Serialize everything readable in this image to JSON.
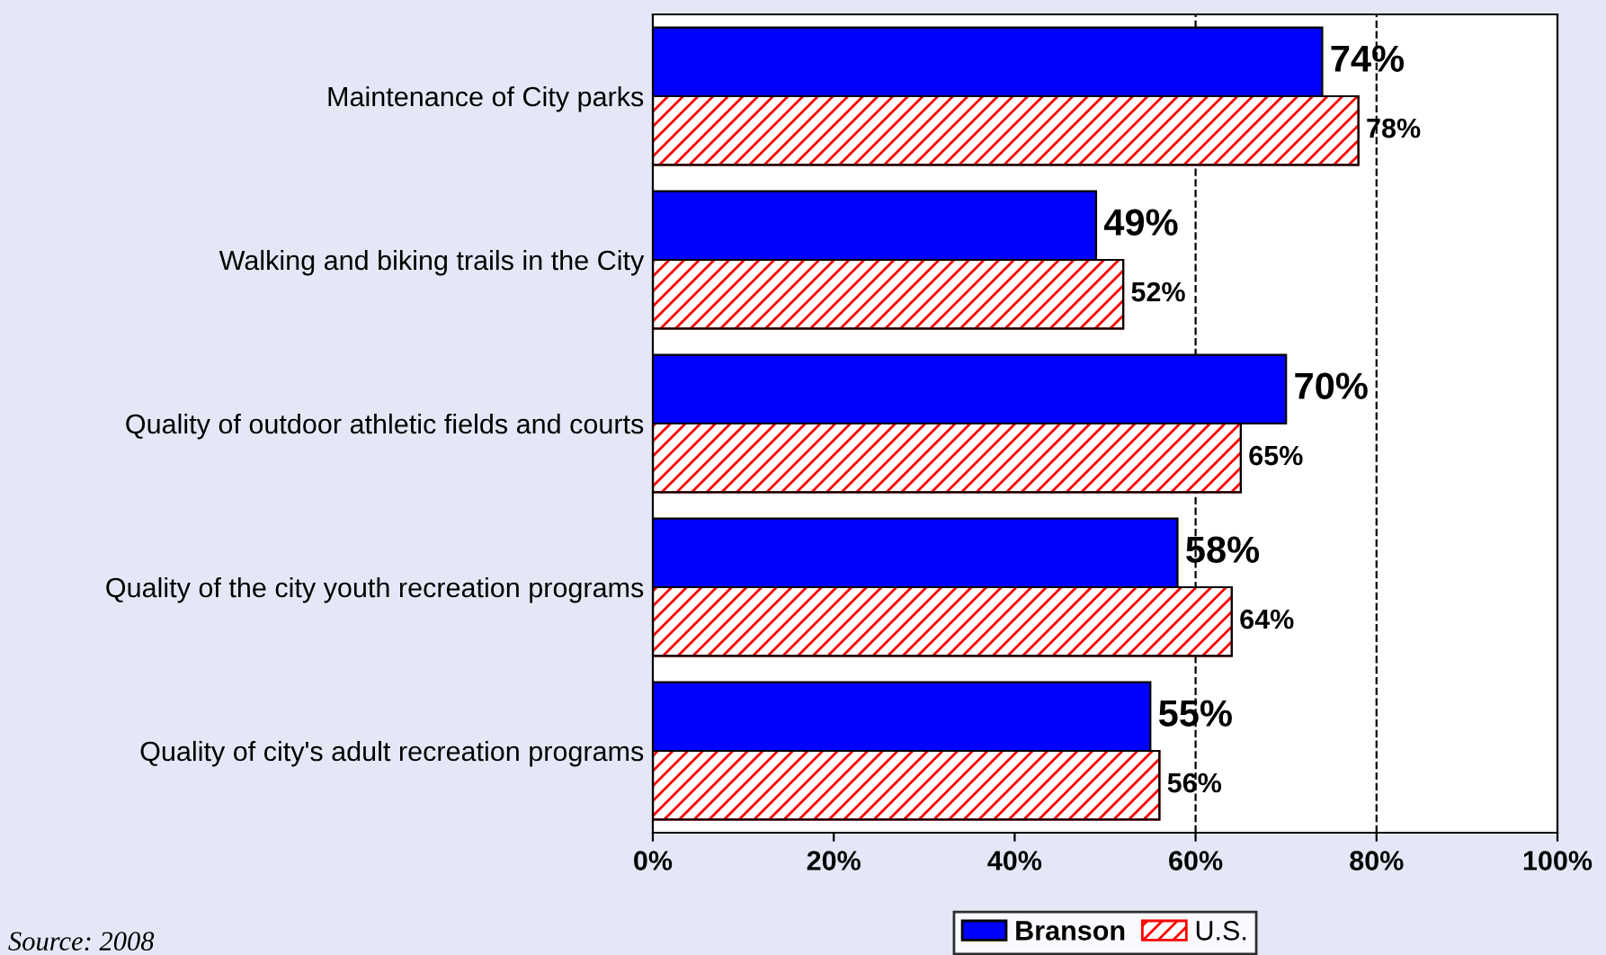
{
  "chart_data": {
    "type": "bar",
    "orientation": "horizontal",
    "categories": [
      "Maintenance of City parks",
      "Walking and biking trails in the City",
      "Quality of outdoor athletic fields and courts",
      "Quality of the city youth recreation programs",
      "Quality of city's adult recreation programs"
    ],
    "series": [
      {
        "name": "Branson",
        "color": "#0000ff",
        "values": [
          74,
          49,
          70,
          58,
          55
        ],
        "value_labels": [
          "74%",
          "49%",
          "70%",
          "58%",
          "55%"
        ]
      },
      {
        "name": "U.S.",
        "color": "#ff0000",
        "values": [
          78,
          52,
          65,
          64,
          56
        ],
        "value_labels": [
          "78%",
          "52%",
          "65%",
          "64%",
          "56%"
        ]
      }
    ],
    "xlim": [
      0,
      100
    ],
    "xticks": [
      {
        "value": 0,
        "label": "0%"
      },
      {
        "value": 20,
        "label": "20%"
      },
      {
        "value": 40,
        "label": "40%"
      },
      {
        "value": 60,
        "label": "60%"
      },
      {
        "value": 80,
        "label": "80%"
      },
      {
        "value": 100,
        "label": "100%"
      }
    ],
    "ref_lines": [
      {
        "axis": "x",
        "value": 60,
        "line_style": "dashed",
        "color": "#000000"
      },
      {
        "axis": "x",
        "value": 80,
        "line_style": "dashed",
        "color": "#000000"
      }
    ],
    "legend": "bottom",
    "grid": false,
    "annotations": [
      "Source: 2008"
    ]
  }
}
